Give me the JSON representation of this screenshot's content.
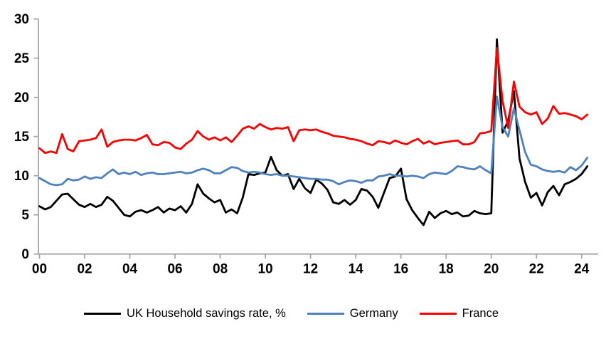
{
  "chart_data": {
    "type": "line",
    "title": "",
    "frequency": "quarterly",
    "x_start_year": 2000,
    "x_tick_labels": [
      "00",
      "02",
      "04",
      "06",
      "08",
      "10",
      "12",
      "14",
      "16",
      "18",
      "20",
      "22",
      "24"
    ],
    "y_ticks": [
      0,
      5,
      10,
      15,
      20,
      25,
      30
    ],
    "ylim": [
      0,
      30
    ],
    "grid": false,
    "legend_position": "bottom",
    "axis_color": "#a6a6a6",
    "series": [
      {
        "name": "UK Household savings rate, %",
        "color": "#000000",
        "values": [
          6.1,
          5.7,
          6.0,
          6.8,
          7.6,
          7.7,
          7.0,
          6.3,
          6.0,
          6.4,
          6.0,
          6.3,
          7.3,
          6.8,
          5.9,
          5.0,
          4.8,
          5.4,
          5.6,
          5.3,
          5.6,
          6.0,
          5.3,
          5.8,
          5.6,
          6.1,
          5.3,
          6.4,
          8.9,
          7.7,
          7.1,
          6.6,
          6.9,
          5.3,
          5.7,
          5.2,
          7.2,
          10.2,
          10.1,
          10.3,
          10.4,
          12.4,
          10.7,
          10.0,
          10.2,
          8.3,
          9.6,
          8.4,
          7.8,
          9.5,
          9.0,
          8.2,
          6.6,
          6.4,
          6.9,
          6.3,
          6.9,
          8.3,
          8.1,
          7.3,
          5.9,
          7.8,
          9.7,
          9.9,
          10.9,
          7.0,
          5.6,
          4.6,
          3.7,
          5.4,
          4.6,
          5.2,
          5.5,
          5.1,
          5.3,
          4.8,
          4.9,
          5.5,
          5.2,
          5.1,
          5.2,
          27.4,
          15.5,
          17.0,
          20.8,
          12.2,
          9.2,
          7.2,
          7.8,
          6.2,
          7.9,
          8.7,
          7.5,
          8.9,
          9.2,
          9.6,
          10.2,
          11.2
        ]
      },
      {
        "name": "Germany",
        "color": "#4f81bd",
        "values": [
          9.7,
          9.3,
          8.9,
          8.8,
          8.9,
          9.6,
          9.4,
          9.5,
          9.9,
          9.6,
          9.8,
          9.7,
          10.3,
          10.8,
          10.2,
          10.4,
          10.2,
          10.5,
          10.1,
          10.3,
          10.4,
          10.2,
          10.2,
          10.3,
          10.4,
          10.5,
          10.3,
          10.4,
          10.7,
          10.9,
          10.7,
          10.3,
          10.3,
          10.7,
          11.1,
          11.0,
          10.6,
          10.4,
          10.5,
          10.4,
          10.2,
          10.1,
          10.2,
          10.0,
          10.0,
          9.9,
          9.8,
          9.7,
          9.6,
          9.6,
          9.5,
          9.5,
          9.3,
          8.9,
          9.2,
          9.4,
          9.3,
          9.1,
          9.4,
          9.4,
          9.9,
          10.0,
          10.2,
          10.0,
          10.0,
          9.9,
          10.0,
          9.9,
          9.7,
          10.2,
          10.4,
          10.3,
          10.2,
          10.6,
          11.2,
          11.1,
          10.9,
          10.8,
          11.2,
          10.7,
          10.3,
          20.1,
          16.2,
          15.0,
          18.6,
          15.8,
          13.0,
          11.4,
          11.2,
          10.8,
          10.6,
          10.5,
          10.6,
          10.4,
          11.1,
          10.7,
          11.3,
          12.3
        ]
      },
      {
        "name": "France",
        "color": "#ff0000",
        "values": [
          13.5,
          12.9,
          13.1,
          12.9,
          15.3,
          13.4,
          13.1,
          14.4,
          14.5,
          14.6,
          14.8,
          15.9,
          13.7,
          14.3,
          14.5,
          14.6,
          14.6,
          14.5,
          14.8,
          15.2,
          14.0,
          13.9,
          14.3,
          14.2,
          13.6,
          13.4,
          14.1,
          14.6,
          15.7,
          15.0,
          14.6,
          14.9,
          14.5,
          14.9,
          14.3,
          15.1,
          16.0,
          16.3,
          16.0,
          16.6,
          16.2,
          15.9,
          16.1,
          16.0,
          16.2,
          14.4,
          15.8,
          15.9,
          15.8,
          15.9,
          15.6,
          15.4,
          15.1,
          15.0,
          14.9,
          14.7,
          14.6,
          14.4,
          14.1,
          13.9,
          14.4,
          14.3,
          14.1,
          14.5,
          14.2,
          14.0,
          14.4,
          14.7,
          14.1,
          14.4,
          14.0,
          14.2,
          14.3,
          14.4,
          14.5,
          14.0,
          14.0,
          14.3,
          15.4,
          15.5,
          15.7,
          26.3,
          19.5,
          16.1,
          22.0,
          18.8,
          18.1,
          17.8,
          18.1,
          16.6,
          17.3,
          18.9,
          17.9,
          18.0,
          17.8,
          17.6,
          17.2,
          17.8
        ]
      }
    ]
  }
}
